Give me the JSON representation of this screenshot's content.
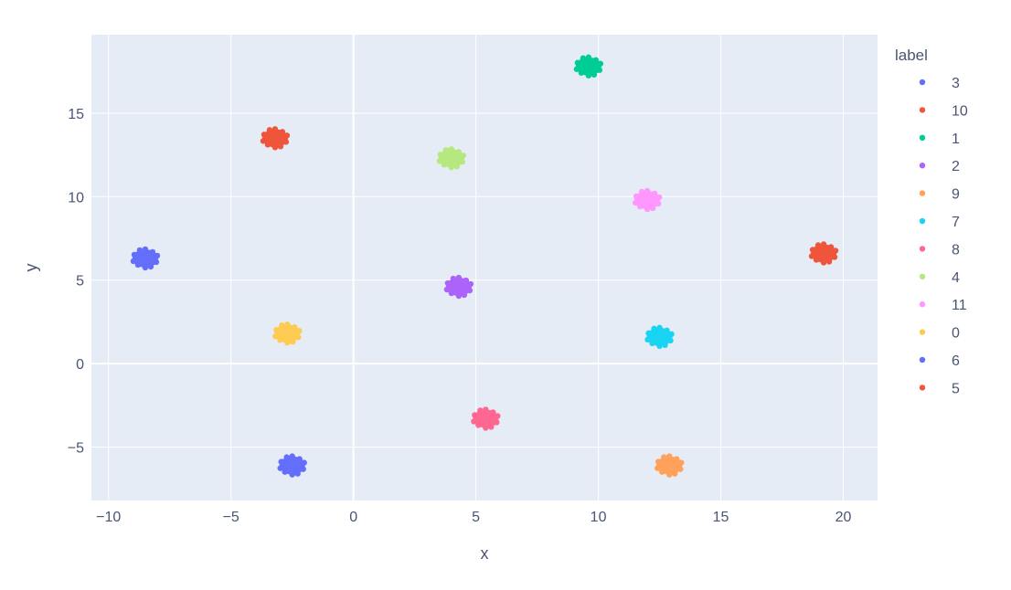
{
  "chart_data": {
    "type": "scatter",
    "xlabel": "x",
    "ylabel": "y",
    "xlim": [
      -10.7,
      21.4
    ],
    "ylim": [
      -8.2,
      19.7
    ],
    "x_ticks": [
      -10,
      -5,
      0,
      5,
      10,
      15,
      20
    ],
    "x_tick_labels": [
      "−10",
      "−5",
      "0",
      "5",
      "10",
      "15",
      "20"
    ],
    "y_ticks": [
      -5,
      0,
      5,
      10,
      15
    ],
    "y_tick_labels": [
      "−5",
      "0",
      "5",
      "10",
      "15"
    ],
    "grid": true,
    "legend_title": "label",
    "legend_position": "right",
    "series": [
      {
        "name": "3",
        "color": "#636efa",
        "x": -2.5,
        "y": -6.1
      },
      {
        "name": "10",
        "color": "#EF553B",
        "x": -3.2,
        "y": 13.5
      },
      {
        "name": "1",
        "color": "#00cc96",
        "x": 9.6,
        "y": 17.8
      },
      {
        "name": "2",
        "color": "#ab63fa",
        "x": 4.3,
        "y": 4.6
      },
      {
        "name": "9",
        "color": "#FFA15A",
        "x": 12.9,
        "y": -6.1
      },
      {
        "name": "7",
        "color": "#19d3f3",
        "x": 12.5,
        "y": 1.6
      },
      {
        "name": "8",
        "color": "#FF6692",
        "x": 5.4,
        "y": -3.3
      },
      {
        "name": "4",
        "color": "#B6E880",
        "x": 4.0,
        "y": 12.3
      },
      {
        "name": "11",
        "color": "#FF97FF",
        "x": 12.0,
        "y": 9.8
      },
      {
        "name": "0",
        "color": "#FECB52",
        "x": -2.7,
        "y": 1.8
      },
      {
        "name": "6",
        "color": "#636efa",
        "x": -8.5,
        "y": 6.3
      },
      {
        "name": "5",
        "color": "#EF553B",
        "x": 19.2,
        "y": 6.6
      }
    ]
  }
}
